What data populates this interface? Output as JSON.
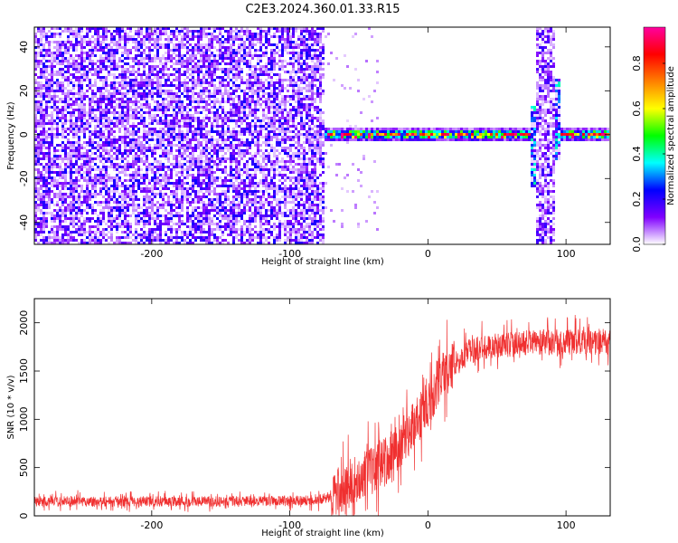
{
  "title": "C2E3.2024.360.01.33.R15",
  "chart_data": [
    {
      "type": "heatmap",
      "xlabel": "Height of straight line (km)",
      "ylabel": "Frequency (Hz)",
      "xlim": [
        -285,
        132
      ],
      "ylim": [
        -50,
        49
      ],
      "x_ticks": [
        "-200",
        "-100",
        "0",
        "100"
      ],
      "y_ticks": [
        "40",
        "20",
        "0",
        "-20",
        "-40"
      ],
      "x_tick_values": [
        -200,
        -100,
        0,
        100
      ],
      "y_tick_values": [
        40,
        20,
        0,
        -20,
        -40
      ],
      "colorbar": {
        "label": "Normalized spectral amplitude",
        "ticks": [
          "0.0",
          "0.2",
          "0.4",
          "0.6",
          "0.8"
        ],
        "tick_values": [
          0.0,
          0.2,
          0.4,
          0.6,
          0.8
        ],
        "range": [
          0.0,
          0.96
        ],
        "colors": [
          "#ffffff",
          "#8000ff",
          "#0000ff",
          "#00ffff",
          "#00ff00",
          "#ffff00",
          "#ff8000",
          "#ff0000",
          "#ff00a0"
        ]
      },
      "regions": [
        {
          "x": [
            -285,
            -75
          ],
          "f": [
            -50,
            49
          ],
          "kind": "broadband-noise",
          "amplitude": 0.15
        },
        {
          "x": [
            -75,
            132
          ],
          "f": [
            -3,
            3
          ],
          "kind": "narrow-band",
          "amplitude": 0.6
        },
        {
          "x": [
            75,
            78
          ],
          "f": [
            -24,
            13
          ],
          "kind": "streak",
          "amplitude": 0.3
        },
        {
          "x": [
            78,
            93
          ],
          "f": [
            -50,
            49
          ],
          "kind": "broadband-noise",
          "amplitude": 0.12
        },
        {
          "x": [
            93,
            96
          ],
          "f": [
            -12,
            26
          ],
          "kind": "streak",
          "amplitude": 0.3
        }
      ]
    },
    {
      "type": "line",
      "xlabel": "Height of straight line (km)",
      "ylabel": "SNR (10 * v/v)",
      "xlim": [
        -285,
        132
      ],
      "ylim": [
        0,
        2250
      ],
      "x_ticks": [
        "-200",
        "-100",
        "0",
        "100"
      ],
      "y_ticks": [
        "2000",
        "1500",
        "1000",
        "500",
        "0"
      ],
      "x_tick_values": [
        -200,
        -100,
        0,
        100
      ],
      "y_tick_values": [
        2000,
        1500,
        1000,
        500,
        0
      ],
      "series": [
        {
          "color": "#f03030",
          "x": [
            -285,
            -250,
            -200,
            -150,
            -100,
            -80,
            -70,
            -60,
            -50,
            -40,
            -30,
            -20,
            -10,
            0,
            10,
            20,
            30,
            40,
            60,
            80,
            100,
            132
          ],
          "values": [
            150,
            150,
            150,
            150,
            155,
            160,
            200,
            300,
            400,
            480,
            600,
            750,
            950,
            1150,
            1450,
            1600,
            1700,
            1750,
            1780,
            1800,
            1800,
            1800
          ]
        }
      ]
    }
  ]
}
